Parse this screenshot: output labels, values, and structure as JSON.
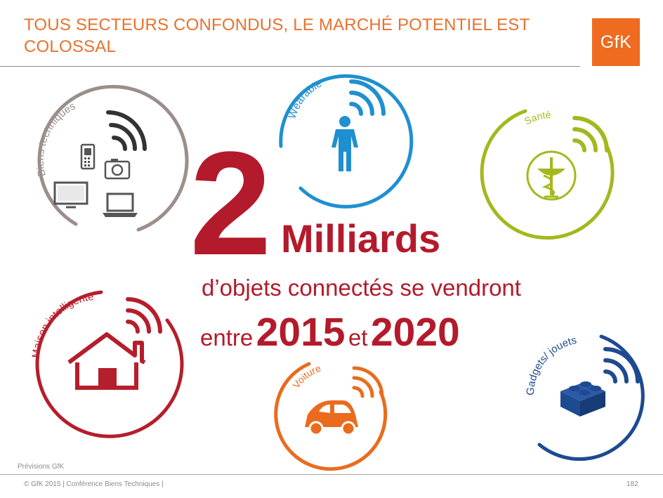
{
  "header": {
    "title": "TOUS SECTEURS CONFONDUS, LE MARCHÉ POTENTIEL EST COLOSSAL",
    "logo": "GfK"
  },
  "headline": {
    "number": "2",
    "unit": "Milliards",
    "line1": "d’objets connectés se vendront",
    "between": "entre",
    "year_start": "2015",
    "and": "et",
    "year_end": "2020"
  },
  "categories": [
    {
      "label": "Biens techniques",
      "color": "#9b8f8b",
      "icon": "phone-camera-tv-laptop-icon"
    },
    {
      "label": "Wearable",
      "color": "#1e90d0",
      "icon": "person-icon"
    },
    {
      "label": "Santé",
      "color": "#a4b81e",
      "icon": "caduceus-icon"
    },
    {
      "label": "Maison intelligente",
      "color": "#b51e2b",
      "icon": "house-icon"
    },
    {
      "label": "Voiture",
      "color": "#ea6b1e",
      "icon": "car-icon"
    },
    {
      "label": "Gadgets/ jouets",
      "color": "#1e4a90",
      "icon": "toy-brick-icon"
    }
  ],
  "footer": {
    "source": "Prévisions GfK",
    "copyright": "© GfK 2015 | Conférence Biens Techniques |",
    "page": "182"
  }
}
